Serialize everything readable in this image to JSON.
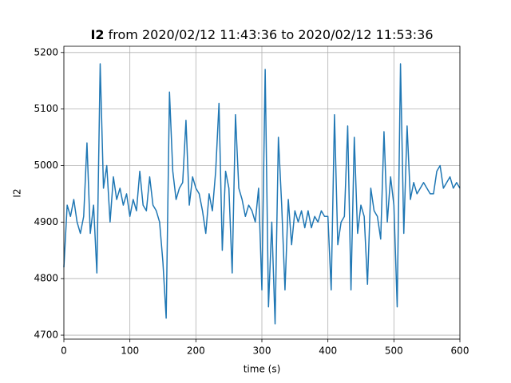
{
  "chart_data": {
    "type": "line",
    "title": [
      "I2",
      " from 2020/02/12 11:43:36 to 2020/02/12 11:53:36"
    ],
    "x_label": "time (s)",
    "y_label": "I2",
    "x": [
      0,
      5,
      10,
      15,
      20,
      25,
      30,
      35,
      40,
      45,
      50,
      55,
      60,
      65,
      70,
      75,
      80,
      85,
      90,
      95,
      100,
      105,
      110,
      115,
      120,
      125,
      130,
      135,
      140,
      145,
      150,
      155,
      160,
      165,
      170,
      175,
      180,
      185,
      190,
      195,
      200,
      205,
      210,
      215,
      220,
      225,
      230,
      235,
      240,
      245,
      250,
      255,
      260,
      265,
      270,
      275,
      280,
      285,
      290,
      295,
      300,
      305,
      310,
      315,
      320,
      325,
      330,
      335,
      340,
      345,
      350,
      355,
      360,
      365,
      370,
      375,
      380,
      385,
      390,
      395,
      400,
      405,
      410,
      415,
      420,
      425,
      430,
      435,
      440,
      445,
      450,
      455,
      460,
      465,
      470,
      475,
      480,
      485,
      490,
      495,
      500,
      505,
      510,
      515,
      520,
      525,
      530,
      535,
      540,
      545,
      550,
      555,
      560,
      565,
      570,
      575,
      580,
      585,
      590,
      595,
      600
    ],
    "series": [
      {
        "name": "I2",
        "color": "#1f77b4",
        "values": [
          4820,
          4930,
          4910,
          4940,
          4900,
          4880,
          4910,
          5040,
          4880,
          4930,
          4810,
          5180,
          4960,
          5000,
          4900,
          4980,
          4940,
          4960,
          4930,
          4950,
          4910,
          4940,
          4920,
          4990,
          4930,
          4920,
          4980,
          4930,
          4920,
          4900,
          4830,
          4730,
          5130,
          4990,
          4940,
          4960,
          4970,
          5080,
          4930,
          4980,
          4960,
          4950,
          4920,
          4880,
          4950,
          4920,
          4990,
          5110,
          4850,
          4990,
          4960,
          4810,
          5090,
          4960,
          4940,
          4910,
          4930,
          4920,
          4900,
          4960,
          4780,
          5170,
          4750,
          4900,
          4720,
          5050,
          4930,
          4780,
          4940,
          4860,
          4920,
          4900,
          4920,
          4890,
          4920,
          4890,
          4910,
          4900,
          4920,
          4910,
          4910,
          4780,
          5090,
          4860,
          4900,
          4910,
          5070,
          4780,
          5050,
          4880,
          4930,
          4910,
          4790,
          4960,
          4920,
          4910,
          4870,
          5060,
          4900,
          4980,
          4930,
          4750,
          5180,
          4880,
          5070,
          4940,
          4970,
          4950,
          4960,
          4970,
          4960,
          4950,
          4950,
          4990,
          5000,
          4960,
          4970,
          4980,
          4960,
          4970,
          4960
        ]
      }
    ],
    "xlim": [
      0,
      600
    ],
    "xticks": [
      0,
      100,
      200,
      300,
      400,
      500,
      600
    ],
    "ylim": [
      4693,
      5211
    ],
    "yticks": [
      4700,
      4800,
      4900,
      5000,
      5100,
      5200
    ],
    "grid": true
  }
}
